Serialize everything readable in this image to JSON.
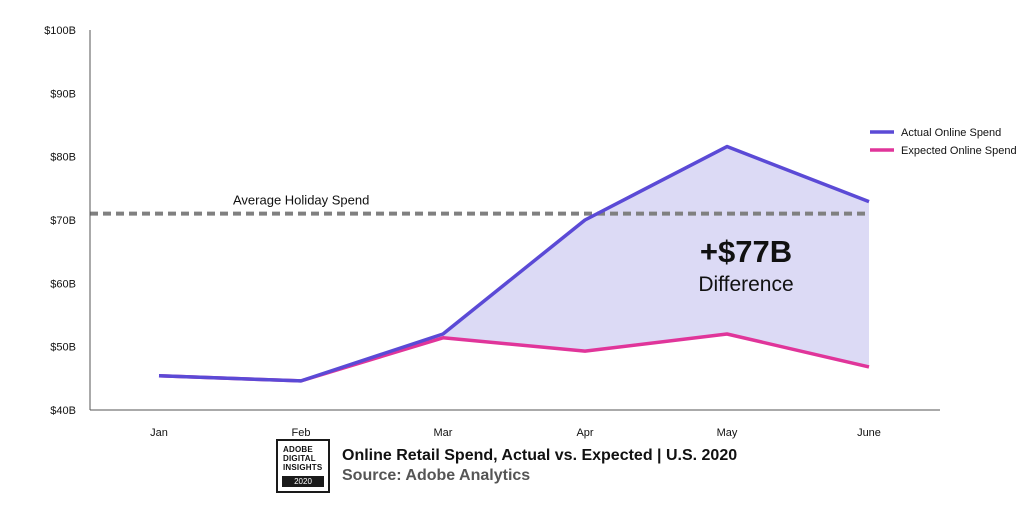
{
  "chart_data": {
    "type": "line",
    "categories": [
      "Jan",
      "Feb",
      "Mar",
      "Apr",
      "May",
      "June"
    ],
    "series": [
      {
        "name": "Actual Online Spend",
        "values": [
          45.4,
          44.6,
          52.0,
          70.0,
          81.6,
          72.9
        ],
        "color": "#5b4ad6"
      },
      {
        "name": "Expected Online Spend",
        "values": [
          45.4,
          44.6,
          51.4,
          49.3,
          52.0,
          46.8
        ],
        "color": "#e0359a"
      }
    ],
    "ylim": [
      40,
      100
    ],
    "yticks": [
      {
        "value": 40,
        "label": "$40B"
      },
      {
        "value": 50,
        "label": "$50B"
      },
      {
        "value": 60,
        "label": "$60B"
      },
      {
        "value": 70,
        "label": "$70B"
      },
      {
        "value": 80,
        "label": "$80B"
      },
      {
        "value": 90,
        "label": "$90B"
      },
      {
        "value": 100,
        "label": "$100B"
      }
    ],
    "reference_line": {
      "value": 71,
      "label": "Average Holiday Spend",
      "color": "#808080"
    },
    "shaded_difference": {
      "from": "Mar",
      "to": "June",
      "color": "#dcdaf5"
    },
    "annotation": {
      "value": "+$77B",
      "label": "Difference"
    },
    "legend_position": "right",
    "grid": false
  },
  "footer": {
    "badge_text": "ADOBE\nDIGITAL\nINSIGHTS",
    "badge_year": "2020",
    "title": "Online Retail Spend, Actual vs. Expected | U.S. 2020",
    "source": "Source: Adobe Analytics"
  }
}
